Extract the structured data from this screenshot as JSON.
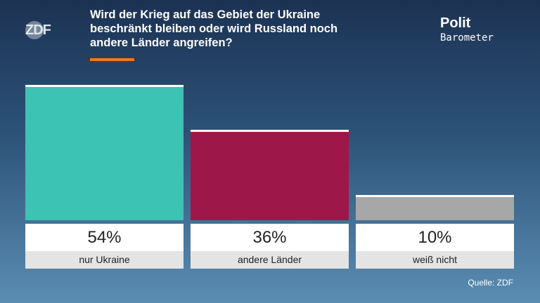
{
  "chart_data": {
    "type": "bar",
    "title": "Wird der Krieg auf das Gebiet der Ukraine beschränkt bleiben oder wird Russland noch andere Länder angreifen?",
    "categories": [
      "nur Ukraine",
      "andere Länder",
      "weiß nicht"
    ],
    "values": [
      54,
      36,
      10
    ],
    "value_labels": [
      "54%",
      "36%",
      "10%"
    ],
    "colors": [
      "#3cc3b3",
      "#9d1848",
      "#a7a7a7"
    ],
    "source": "Quelle: ZDF"
  },
  "header": {
    "logo": "ZDF",
    "brand": [
      "Polit",
      "Barometer"
    ]
  }
}
